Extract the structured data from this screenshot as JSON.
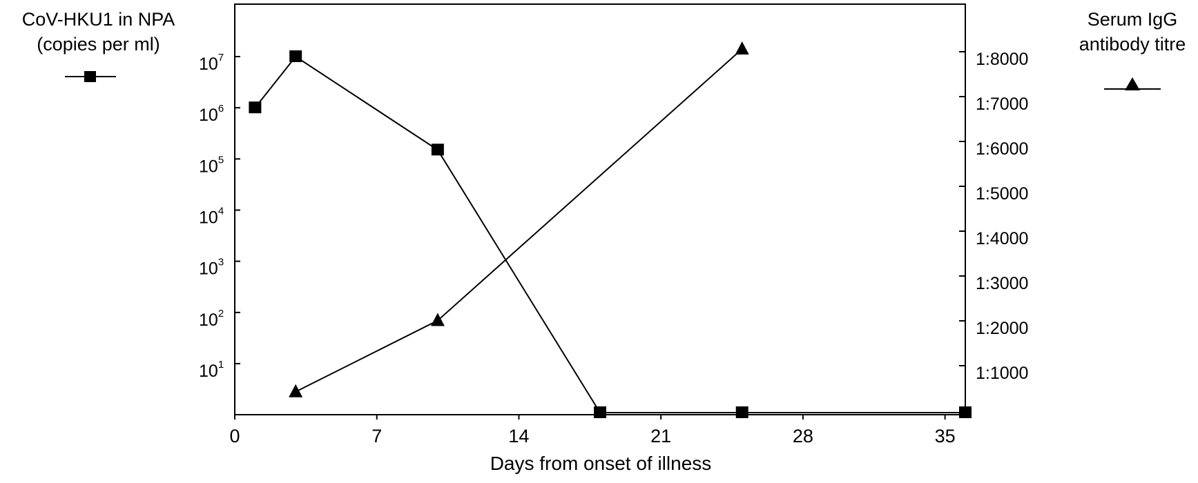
{
  "chart_data": {
    "type": "line",
    "xlabel": "Days from onset of illness",
    "x_ticks": [
      0,
      7,
      14,
      21,
      28,
      35
    ],
    "xlim": [
      0,
      36
    ],
    "left_axis": {
      "label_line1": "CoV-HKU1 in NPA",
      "label_line2": "(copies per ml)",
      "scale": "log",
      "tick_base": "10",
      "tick_exponents": [
        "1",
        "2",
        "3",
        "4",
        "5",
        "6",
        "7"
      ],
      "legend_marker": "square"
    },
    "right_axis": {
      "label_line1": "Serum IgG",
      "label_line2": "antibody titre",
      "scale": "linear",
      "tick_labels": [
        "1:1000",
        "1:2000",
        "1:3000",
        "1:4000",
        "1:5000",
        "1:6000",
        "1:7000",
        "1:8000"
      ],
      "ylim": [
        0,
        8500
      ],
      "legend_marker": "triangle"
    },
    "series": [
      {
        "axis": "left",
        "marker": "square",
        "x": [
          1,
          3,
          10,
          18,
          25,
          36
        ],
        "y": [
          1000000,
          10000000,
          150000,
          0,
          0,
          0
        ]
      },
      {
        "axis": "right",
        "marker": "triangle",
        "x": [
          3,
          10,
          25
        ],
        "y": [
          500,
          2100,
          8200
        ]
      }
    ],
    "grid": false
  }
}
